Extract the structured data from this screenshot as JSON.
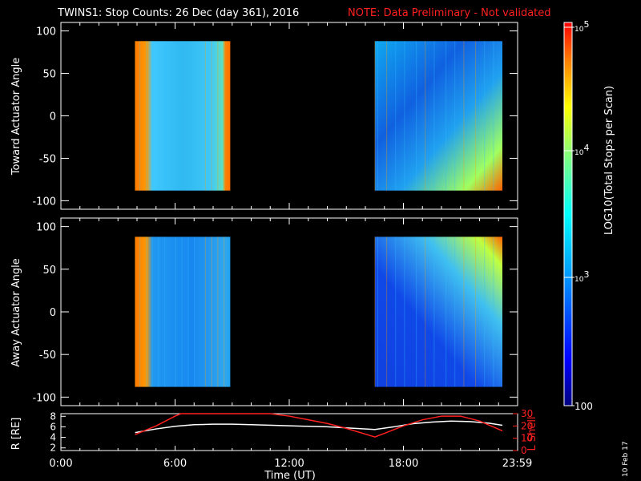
{
  "title": "TWINS1: Stop Counts: 26 Dec (day 361), 2016",
  "note": "NOTE: Data Preliminary - Not validated",
  "date_stamp": "10 Feb 17",
  "colorbar": {
    "label": "LOG10(Total Stops per Scan)",
    "ticks": [
      "10^5",
      "10^4",
      "10^3",
      "100"
    ],
    "tick_values": [
      100000,
      10000,
      1000,
      100
    ]
  },
  "colors": {
    "note": "#ff2020",
    "r_line": "#ffffff",
    "lshell_line": "#ff2020",
    "background": "#000000"
  },
  "chart_data": [
    {
      "type": "heatmap",
      "ylabel": "Toward Actuator Angle",
      "ylim": [
        -110,
        110
      ],
      "yticks": [
        100,
        50,
        0,
        -50,
        -100
      ],
      "xlim_hours": [
        0,
        24
      ],
      "data_blocks": [
        {
          "start_h": 3.9,
          "end_h": 8.9,
          "angle_min": -88,
          "angle_max": 88
        },
        {
          "start_h": 16.5,
          "end_h": 23.2,
          "angle_min": -88,
          "angle_max": 88
        }
      ]
    },
    {
      "type": "heatmap",
      "ylabel": "Away Actuator Angle",
      "ylim": [
        -110,
        110
      ],
      "yticks": [
        100,
        50,
        0,
        -50,
        -100
      ],
      "xlim_hours": [
        0,
        24
      ],
      "data_blocks": [
        {
          "start_h": 3.9,
          "end_h": 8.9,
          "angle_min": -88,
          "angle_max": 88
        },
        {
          "start_h": 16.5,
          "end_h": 23.2,
          "angle_min": -88,
          "angle_max": 88
        }
      ]
    },
    {
      "type": "line",
      "xlabel": "Time (UT)",
      "xticks": [
        "0:00",
        "6:00",
        "12:00",
        "18:00",
        "23:59"
      ],
      "xtick_hours": [
        0,
        6,
        12,
        18,
        23.98
      ],
      "ylabel": "R [RE]",
      "ylim": [
        1.5,
        8.5
      ],
      "yticks": [
        2,
        4,
        6,
        8
      ],
      "y2label": "L Shell",
      "y2lim": [
        0,
        30
      ],
      "y2ticks": [
        0,
        10,
        20,
        30
      ],
      "series": [
        {
          "name": "R [RE]",
          "axis": "left",
          "x": [
            3.9,
            5,
            6,
            7,
            8,
            9,
            10,
            12,
            14,
            16.5,
            17.5,
            18.5,
            19.5,
            20.5,
            21.5,
            22.5,
            23.2
          ],
          "y": [
            4.9,
            5.6,
            6.1,
            6.4,
            6.5,
            6.5,
            6.4,
            6.2,
            6.0,
            5.5,
            6.0,
            6.6,
            6.9,
            7.1,
            7.0,
            6.7,
            6.3
          ]
        },
        {
          "name": "L Shell",
          "axis": "right",
          "x": [
            3.9,
            5,
            6,
            6.3,
            11.0,
            12,
            13,
            14,
            15,
            16.5,
            17,
            18,
            19,
            20,
            21,
            22,
            23.2
          ],
          "y": [
            13,
            20,
            28,
            31,
            31,
            28,
            25,
            22,
            18,
            11,
            14,
            20,
            25,
            28,
            28,
            24,
            16
          ]
        }
      ]
    }
  ]
}
